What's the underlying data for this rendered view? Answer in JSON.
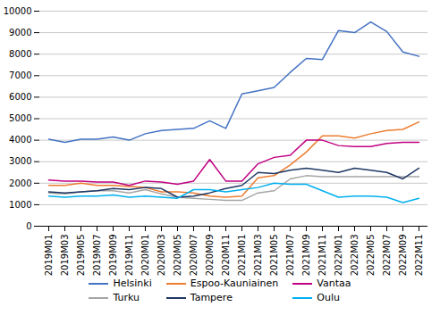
{
  "chart_data": {
    "type": "line",
    "categories": [
      "2019M01",
      "2019M03",
      "2019M05",
      "2019M07",
      "2019M09",
      "2019M11",
      "2020M01",
      "2020M03",
      "2020M05",
      "2020M07",
      "2020M09",
      "2020M11",
      "2021M01",
      "2021M03",
      "2021M05",
      "2021M07",
      "2021M09",
      "2021M11",
      "2022M01",
      "2022M03",
      "2022M05",
      "2022M07",
      "2022M09",
      "2022M11"
    ],
    "series": [
      {
        "name": "Helsinki",
        "color": "#4472C4",
        "values": [
          4050,
          3900,
          4050,
          4050,
          4150,
          4000,
          4300,
          4450,
          4500,
          4550,
          4900,
          4550,
          6150,
          6300,
          6450,
          7150,
          7800,
          7750,
          9100,
          9000,
          9500,
          9050,
          8100,
          7900
        ]
      },
      {
        "name": "Espoo-Kauniainen",
        "color": "#ED7D31",
        "values": [
          1900,
          1900,
          2000,
          1900,
          1900,
          1850,
          1800,
          1600,
          1600,
          1550,
          1400,
          1350,
          1400,
          2250,
          2350,
          2850,
          3450,
          4200,
          4200,
          4100,
          4300,
          4450,
          4500,
          4850
        ]
      },
      {
        "name": "Vantaa",
        "color": "#C00080",
        "values": [
          2150,
          2100,
          2100,
          2050,
          2050,
          1900,
          2100,
          2050,
          1950,
          2100,
          3100,
          2100,
          2100,
          2900,
          3200,
          3300,
          4000,
          4000,
          3750,
          3700,
          3700,
          3850,
          3900,
          3900
        ]
      },
      {
        "name": "Turku",
        "color": "#A5A5A5",
        "values": [
          1550,
          1500,
          1600,
          1650,
          1650,
          1550,
          1700,
          1500,
          1350,
          1300,
          1250,
          1200,
          1200,
          1550,
          1650,
          2200,
          2350,
          2300,
          2300,
          2300,
          2300,
          2300,
          2300,
          2300
        ]
      },
      {
        "name": "Tampere",
        "color": "#1F3864",
        "values": [
          1600,
          1550,
          1600,
          1650,
          1750,
          1700,
          1800,
          1750,
          1350,
          1400,
          1550,
          1750,
          1900,
          2500,
          2450,
          2600,
          2700,
          2600,
          2500,
          2700,
          2600,
          2500,
          2200,
          2700
        ]
      },
      {
        "name": "Oulu",
        "color": "#00B0F0",
        "values": [
          1400,
          1350,
          1400,
          1400,
          1450,
          1350,
          1400,
          1350,
          1300,
          1700,
          1700,
          1600,
          1700,
          1800,
          2000,
          1950,
          1950,
          1650,
          1350,
          1400,
          1400,
          1350,
          1100,
          1300
        ]
      }
    ],
    "ylim": [
      0,
      10000
    ],
    "yticks": [
      0,
      1000,
      2000,
      3000,
      4000,
      5000,
      6000,
      7000,
      8000,
      9000,
      10000
    ],
    "grid": true,
    "legend": "bottom"
  }
}
